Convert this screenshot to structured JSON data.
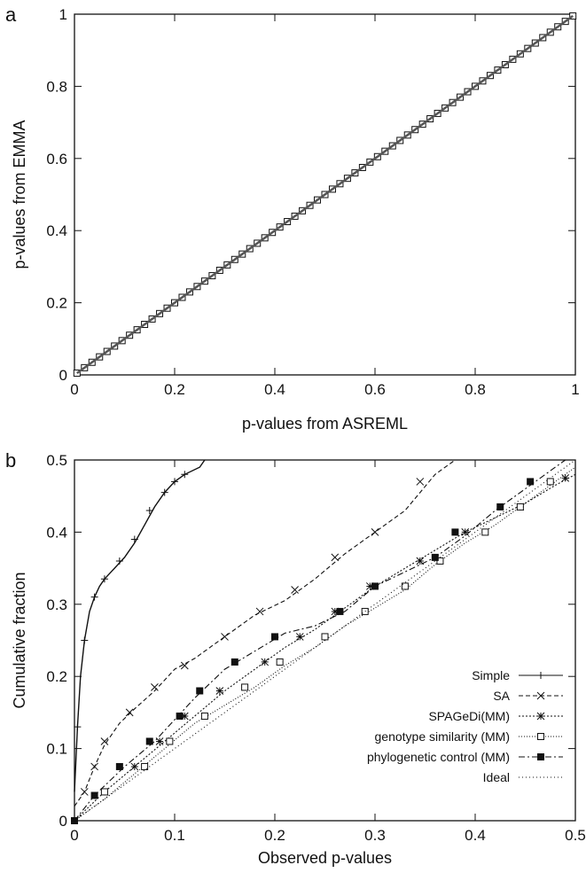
{
  "chart_data": [
    {
      "panel": "a",
      "type": "scatter",
      "xlabel": "p-values from ASREML",
      "ylabel": "p-values from EMMA",
      "xlim": [
        0,
        1
      ],
      "ylim": [
        0,
        1
      ],
      "xticks": [
        "0",
        "0.2",
        "0.4",
        "0.6",
        "0.8",
        "1"
      ],
      "yticks": [
        "0",
        "0.2",
        "0.4",
        "0.6",
        "0.8",
        "1"
      ],
      "grid": false,
      "series": [
        {
          "marker": "square",
          "x": [
            0.005,
            0.02,
            0.035,
            0.05,
            0.065,
            0.08,
            0.095,
            0.11,
            0.125,
            0.14,
            0.155,
            0.17,
            0.185,
            0.2,
            0.215,
            0.23,
            0.245,
            0.26,
            0.275,
            0.29,
            0.305,
            0.32,
            0.335,
            0.35,
            0.365,
            0.38,
            0.395,
            0.41,
            0.425,
            0.44,
            0.455,
            0.47,
            0.485,
            0.5,
            0.515,
            0.53,
            0.545,
            0.56,
            0.575,
            0.59,
            0.605,
            0.62,
            0.635,
            0.65,
            0.665,
            0.68,
            0.695,
            0.71,
            0.725,
            0.74,
            0.755,
            0.77,
            0.785,
            0.8,
            0.815,
            0.83,
            0.845,
            0.86,
            0.875,
            0.89,
            0.905,
            0.92,
            0.935,
            0.95,
            0.965,
            0.98,
            0.995
          ],
          "y": [
            0.005,
            0.02,
            0.035,
            0.05,
            0.065,
            0.08,
            0.095,
            0.11,
            0.125,
            0.14,
            0.155,
            0.17,
            0.185,
            0.2,
            0.215,
            0.23,
            0.245,
            0.26,
            0.275,
            0.29,
            0.305,
            0.32,
            0.335,
            0.35,
            0.365,
            0.38,
            0.395,
            0.41,
            0.425,
            0.44,
            0.455,
            0.47,
            0.485,
            0.5,
            0.515,
            0.53,
            0.545,
            0.56,
            0.575,
            0.59,
            0.605,
            0.62,
            0.635,
            0.65,
            0.665,
            0.68,
            0.695,
            0.71,
            0.725,
            0.74,
            0.755,
            0.77,
            0.785,
            0.8,
            0.815,
            0.83,
            0.845,
            0.86,
            0.875,
            0.89,
            0.905,
            0.92,
            0.935,
            0.95,
            0.965,
            0.98,
            0.995
          ]
        }
      ]
    },
    {
      "panel": "b",
      "type": "line",
      "xlabel": "Observed p-values",
      "ylabel": "Cumulative fraction",
      "xlim": [
        0,
        0.5
      ],
      "ylim": [
        0,
        0.5
      ],
      "xticks": [
        "0",
        "0.1",
        "0.2",
        "0.3",
        "0.4",
        "0.5"
      ],
      "yticks": [
        "0",
        "0.1",
        "0.2",
        "0.3",
        "0.4",
        "0.5"
      ],
      "grid": false,
      "legend_position": "bottom-right",
      "series": [
        {
          "name": "Simple",
          "marker": "plus",
          "dash": "",
          "x": [
            0,
            0.003,
            0.006,
            0.01,
            0.015,
            0.02,
            0.025,
            0.03,
            0.04,
            0.05,
            0.06,
            0.07,
            0.08,
            0.09,
            0.1,
            0.11,
            0.125,
            0.13
          ],
          "y": [
            0.04,
            0.13,
            0.2,
            0.25,
            0.29,
            0.31,
            0.325,
            0.335,
            0.35,
            0.365,
            0.385,
            0.41,
            0.435,
            0.455,
            0.47,
            0.48,
            0.49,
            0.5
          ],
          "markers_x": [
            0.003,
            0.01,
            0.02,
            0.03,
            0.045,
            0.06,
            0.075,
            0.09,
            0.1,
            0.11
          ],
          "markers_y": [
            0.13,
            0.25,
            0.31,
            0.335,
            0.36,
            0.39,
            0.43,
            0.455,
            0.47,
            0.48
          ]
        },
        {
          "name": "SA",
          "marker": "x",
          "dash": "5,3",
          "x": [
            0,
            0.01,
            0.02,
            0.03,
            0.045,
            0.06,
            0.08,
            0.1,
            0.12,
            0.15,
            0.18,
            0.21,
            0.24,
            0.27,
            0.3,
            0.33,
            0.36,
            0.38
          ],
          "y": [
            0.02,
            0.04,
            0.075,
            0.105,
            0.135,
            0.155,
            0.18,
            0.21,
            0.225,
            0.255,
            0.285,
            0.305,
            0.335,
            0.37,
            0.4,
            0.43,
            0.48,
            0.5
          ],
          "markers_x": [
            0.01,
            0.02,
            0.03,
            0.055,
            0.08,
            0.11,
            0.15,
            0.185,
            0.22,
            0.26,
            0.3,
            0.345
          ],
          "markers_y": [
            0.04,
            0.075,
            0.11,
            0.15,
            0.185,
            0.215,
            0.255,
            0.29,
            0.32,
            0.365,
            0.4,
            0.47
          ]
        },
        {
          "name": "SPAGeDi(MM)",
          "marker": "star",
          "dash": "2,2",
          "x": [
            0,
            0.03,
            0.06,
            0.09,
            0.12,
            0.15,
            0.18,
            0.21,
            0.24,
            0.27,
            0.3,
            0.33,
            0.36,
            0.39,
            0.42,
            0.45,
            0.48,
            0.5
          ],
          "y": [
            0,
            0.04,
            0.075,
            0.11,
            0.145,
            0.18,
            0.21,
            0.24,
            0.265,
            0.295,
            0.325,
            0.35,
            0.375,
            0.4,
            0.42,
            0.44,
            0.465,
            0.48
          ],
          "markers_x": [
            0.03,
            0.06,
            0.085,
            0.11,
            0.145,
            0.19,
            0.225,
            0.26,
            0.295,
            0.345,
            0.39,
            0.445,
            0.49
          ],
          "markers_y": [
            0.04,
            0.075,
            0.11,
            0.145,
            0.18,
            0.22,
            0.255,
            0.29,
            0.325,
            0.36,
            0.4,
            0.435,
            0.475
          ]
        },
        {
          "name": "genotype similarity (MM)",
          "marker": "square-open",
          "dash": "1,2",
          "x": [
            0,
            0.03,
            0.06,
            0.09,
            0.12,
            0.15,
            0.18,
            0.21,
            0.24,
            0.27,
            0.3,
            0.33,
            0.36,
            0.39,
            0.42,
            0.45,
            0.48,
            0.5
          ],
          "y": [
            0,
            0.03,
            0.065,
            0.1,
            0.135,
            0.16,
            0.185,
            0.215,
            0.24,
            0.27,
            0.295,
            0.32,
            0.355,
            0.385,
            0.41,
            0.44,
            0.47,
            0.49
          ],
          "markers_x": [
            0.03,
            0.07,
            0.095,
            0.13,
            0.17,
            0.205,
            0.25,
            0.29,
            0.33,
            0.365,
            0.41,
            0.445,
            0.475
          ],
          "markers_y": [
            0.04,
            0.075,
            0.11,
            0.145,
            0.185,
            0.22,
            0.255,
            0.29,
            0.325,
            0.36,
            0.4,
            0.435,
            0.47
          ]
        },
        {
          "name": "phylogenetic control (MM)",
          "marker": "square-filled",
          "dash": "7,3,2,3",
          "x": [
            0,
            0.02,
            0.05,
            0.08,
            0.1,
            0.12,
            0.15,
            0.18,
            0.21,
            0.24,
            0.27,
            0.3,
            0.33,
            0.36,
            0.39,
            0.42,
            0.45,
            0.48,
            0.49
          ],
          "y": [
            0,
            0.035,
            0.075,
            0.11,
            0.14,
            0.17,
            0.21,
            0.235,
            0.26,
            0.27,
            0.29,
            0.325,
            0.345,
            0.365,
            0.395,
            0.43,
            0.46,
            0.49,
            0.5
          ],
          "markers_x": [
            0,
            0.02,
            0.045,
            0.075,
            0.105,
            0.125,
            0.16,
            0.2,
            0.265,
            0.3,
            0.36,
            0.38,
            0.425,
            0.455
          ],
          "markers_y": [
            0,
            0.035,
            0.075,
            0.11,
            0.145,
            0.18,
            0.22,
            0.255,
            0.29,
            0.325,
            0.365,
            0.4,
            0.435,
            0.47
          ]
        },
        {
          "name": "Ideal",
          "marker": "none",
          "dash": "1,3",
          "x": [
            0,
            0.5
          ],
          "y": [
            0,
            0.5
          ]
        }
      ]
    }
  ]
}
